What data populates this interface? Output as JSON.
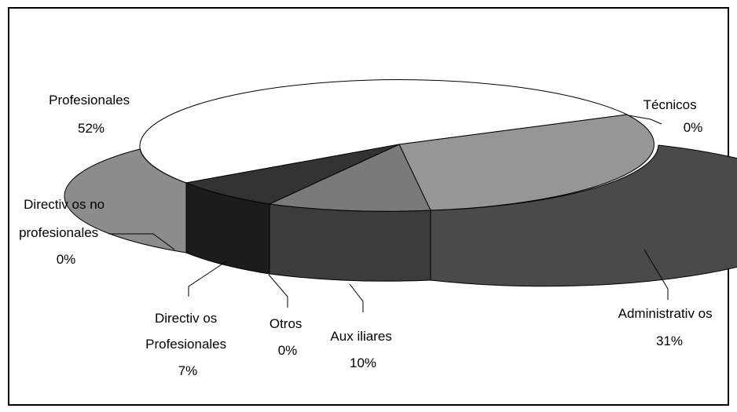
{
  "chart_data": {
    "type": "pie",
    "style": "3d",
    "slices": [
      {
        "label_lines": [
          "Profesionales"
        ],
        "value": 52,
        "value_label": "52%",
        "color": "#ffffff"
      },
      {
        "label_lines": [
          "Técnicos"
        ],
        "value": 0,
        "value_label": "0%",
        "color": "#ffffff"
      },
      {
        "label_lines": [
          "Administrativ os"
        ],
        "value": 31,
        "value_label": "31%",
        "color": "#969696"
      },
      {
        "label_lines": [
          "Aux iliares"
        ],
        "value": 10,
        "value_label": "10%",
        "color": "#7a7a7a"
      },
      {
        "label_lines": [
          "Otros"
        ],
        "value": 0,
        "value_label": "0%",
        "color": "#555555"
      },
      {
        "label_lines": [
          "Directiv os",
          "Profesionales"
        ],
        "value": 7,
        "value_label": "7%",
        "color": "#333333"
      },
      {
        "label_lines": [
          "Directiv os no",
          "profesionales"
        ],
        "value": 0,
        "value_label": "0%",
        "color": "#888888"
      }
    ],
    "colors": {
      "side_administrativos": "#4a4a4a",
      "side_auxiliares": "#3c3c3c",
      "side_directivos_profesionales": "#1c1c1c",
      "side_profesionales": "#8c8c8c"
    }
  }
}
